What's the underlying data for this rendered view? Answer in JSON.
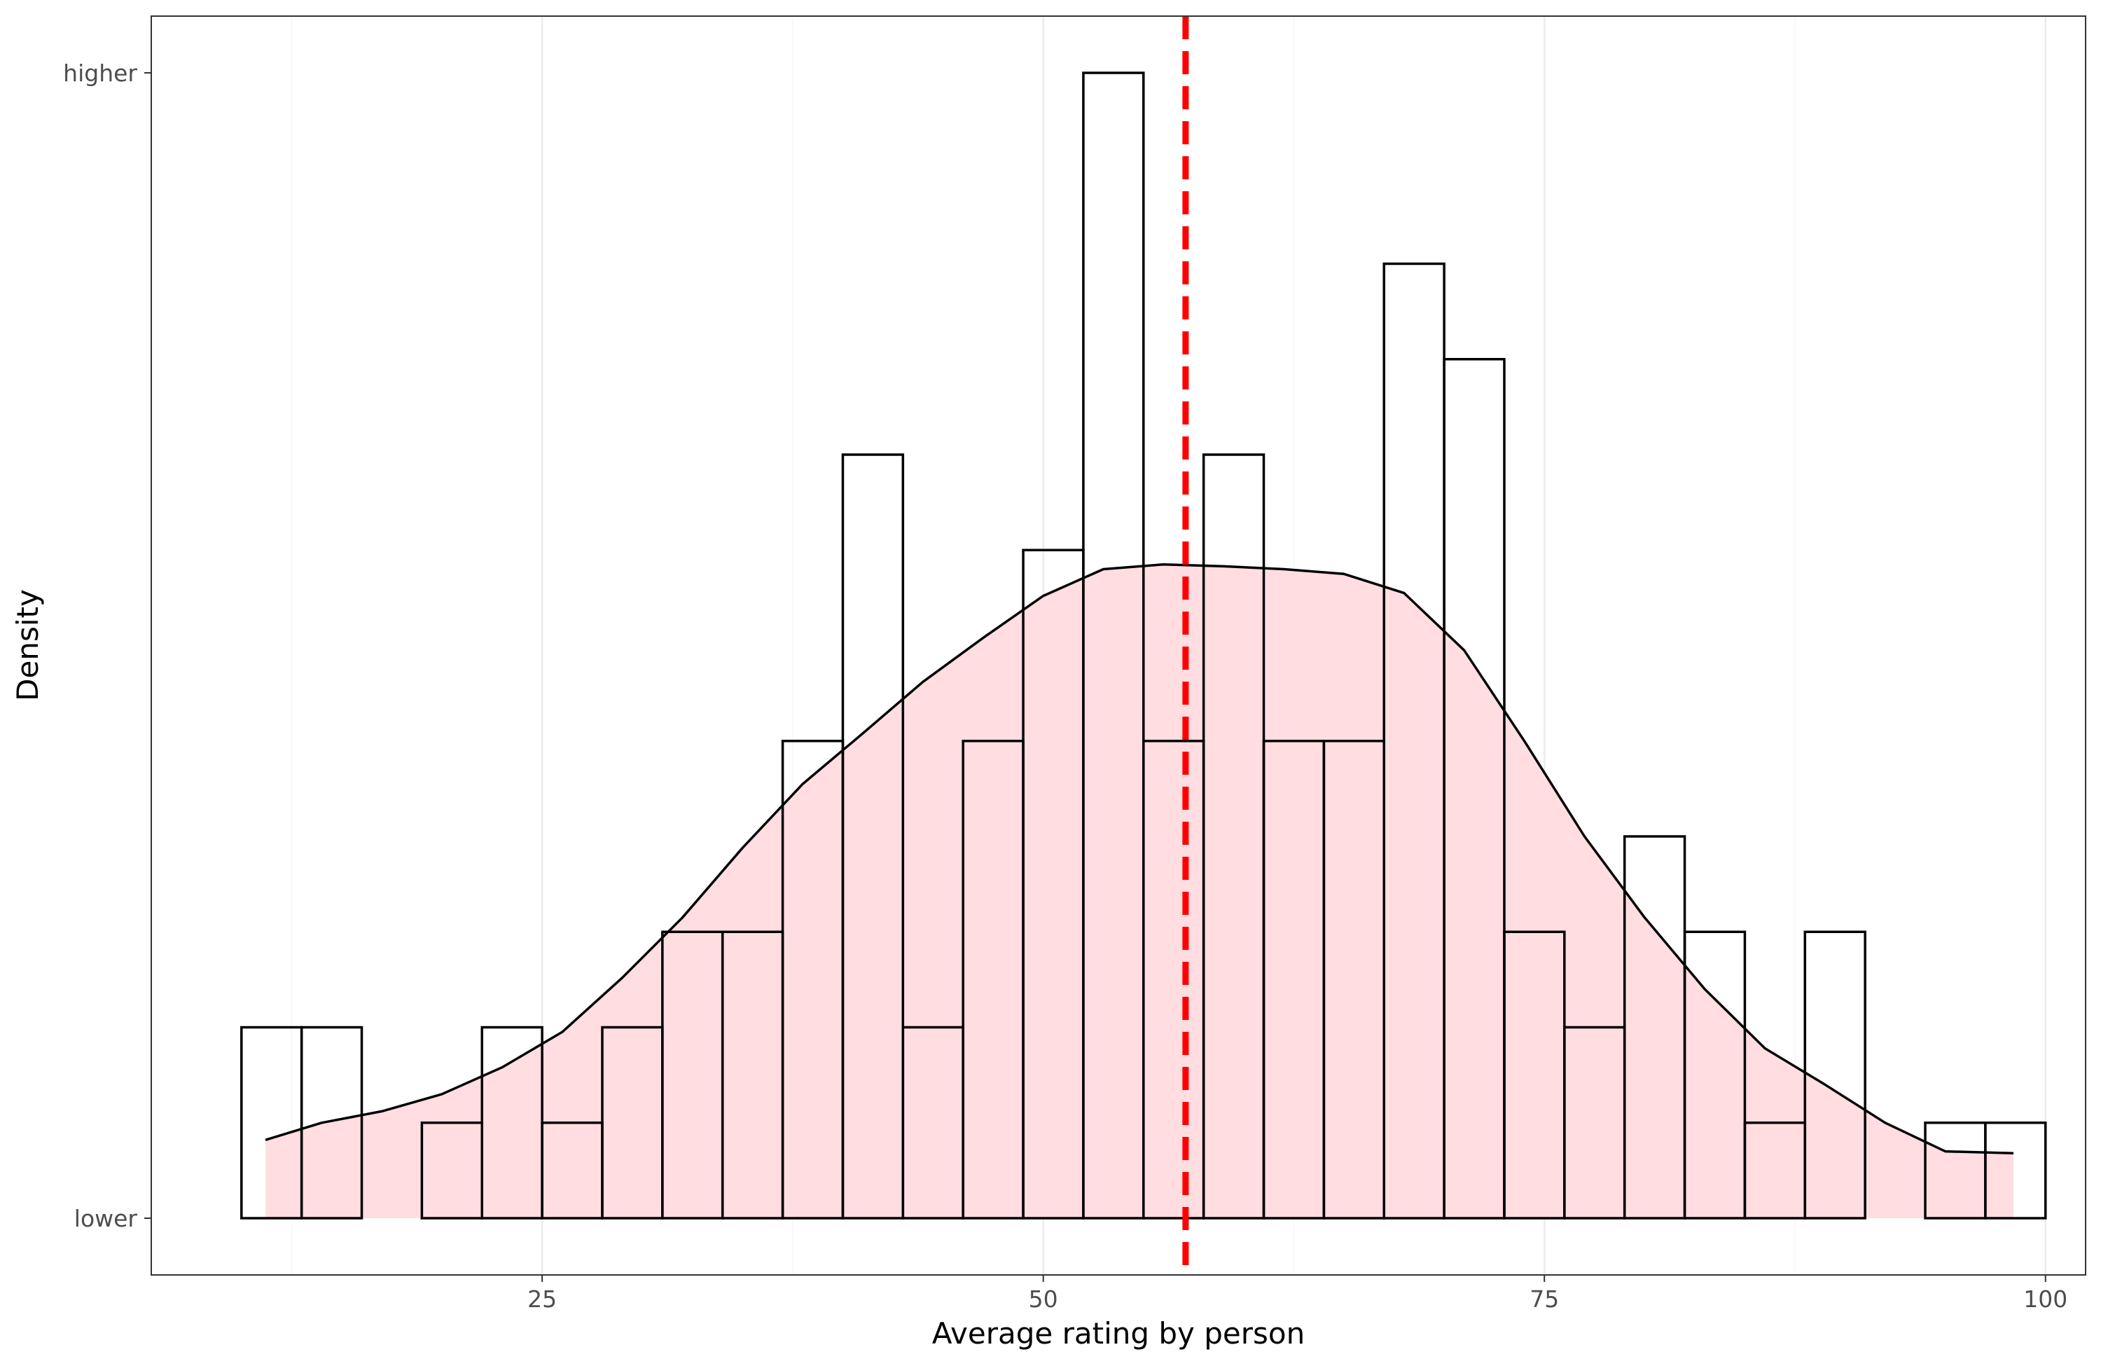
{
  "chart_data": {
    "type": "bar",
    "title": "",
    "xlabel": "Average rating by person",
    "ylabel": "Density",
    "xlim": [
      5.5,
      102
    ],
    "x_ticks": [
      25,
      50,
      75,
      100
    ],
    "y_tick_labels": {
      "top": "higher",
      "bottom": "lower"
    },
    "grid": "vertical major gridlines",
    "legend": "none",
    "histogram": {
      "bin_width": 3,
      "bins": [
        {
          "x0": 10,
          "x1": 13,
          "count": 2
        },
        {
          "x0": 13,
          "x1": 16,
          "count": 2
        },
        {
          "x0": 16,
          "x1": 19,
          "count": 0
        },
        {
          "x0": 19,
          "x1": 22,
          "count": 1
        },
        {
          "x0": 22,
          "x1": 25,
          "count": 2
        },
        {
          "x0": 25,
          "x1": 28,
          "count": 1
        },
        {
          "x0": 28,
          "x1": 31,
          "count": 2
        },
        {
          "x0": 31,
          "x1": 34,
          "count": 3
        },
        {
          "x0": 34,
          "x1": 37,
          "count": 3
        },
        {
          "x0": 37,
          "x1": 40,
          "count": 5
        },
        {
          "x0": 40,
          "x1": 43,
          "count": 8
        },
        {
          "x0": 43,
          "x1": 46,
          "count": 2
        },
        {
          "x0": 46,
          "x1": 49,
          "count": 5
        },
        {
          "x0": 49,
          "x1": 52,
          "count": 7
        },
        {
          "x0": 52,
          "x1": 55,
          "count": 12
        },
        {
          "x0": 55,
          "x1": 58,
          "count": 5
        },
        {
          "x0": 58,
          "x1": 61,
          "count": 8
        },
        {
          "x0": 61,
          "x1": 64,
          "count": 5
        },
        {
          "x0": 64,
          "x1": 67,
          "count": 5
        },
        {
          "x0": 67,
          "x1": 70,
          "count": 10
        },
        {
          "x0": 70,
          "x1": 73,
          "count": 9
        },
        {
          "x0": 73,
          "x1": 76,
          "count": 3
        },
        {
          "x0": 76,
          "x1": 79,
          "count": 2
        },
        {
          "x0": 79,
          "x1": 82,
          "count": 4
        },
        {
          "x0": 82,
          "x1": 85,
          "count": 3
        },
        {
          "x0": 85,
          "x1": 88,
          "count": 1
        },
        {
          "x0": 88,
          "x1": 91,
          "count": 3
        },
        {
          "x0": 91,
          "x1": 94,
          "count": 0
        },
        {
          "x0": 94,
          "x1": 97,
          "count": 1
        },
        {
          "x0": 97,
          "x1": 100,
          "count": 1
        }
      ],
      "fill": "#ffffff",
      "stroke": "#000000"
    },
    "density": {
      "x": [
        11.2,
        14,
        17,
        20,
        23,
        26,
        29,
        32,
        35,
        38,
        41,
        44,
        47,
        50,
        53,
        56,
        59,
        62,
        65,
        68,
        71,
        74,
        77,
        80,
        83,
        86,
        89,
        92,
        95,
        98.4
      ],
      "count": [
        0.82,
        1.0,
        1.12,
        1.3,
        1.58,
        1.95,
        2.52,
        3.15,
        3.88,
        4.55,
        5.08,
        5.62,
        6.08,
        6.52,
        6.8,
        6.85,
        6.83,
        6.8,
        6.75,
        6.55,
        5.95,
        5.0,
        4.0,
        3.15,
        2.4,
        1.78,
        1.4,
        1.0,
        0.7,
        0.68
      ],
      "fill": "#ffdde1",
      "stroke": "#000000"
    },
    "reference_line": {
      "x": 57.1,
      "style": "dashed",
      "color": "#ff0000"
    },
    "y_count_max": 12
  }
}
